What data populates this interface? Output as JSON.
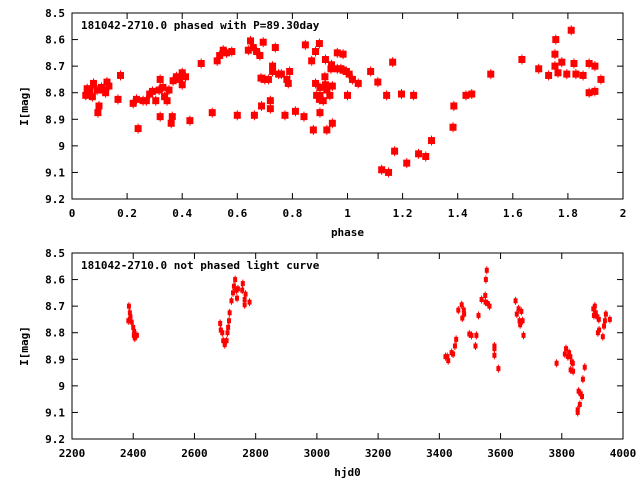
{
  "chart_data": [
    {
      "type": "scatter",
      "title": "181042-2710.0 phased with P=89.30day",
      "xlabel": "phase",
      "ylabel": "I[mag]",
      "xlim": [
        0,
        2
      ],
      "ylim": [
        8.5,
        9.2
      ],
      "y_inverted": true,
      "xticks": [
        "0",
        "0.2",
        "0.4",
        "0.6",
        "0.8",
        "1",
        "1.2",
        "1.4",
        "1.6",
        "1.8",
        "2"
      ],
      "yticks": [
        "8.5",
        "8.6",
        "8.7",
        "8.8",
        "8.9",
        "9",
        "9.1",
        "9.2"
      ],
      "grid": false,
      "marker_color": "#ff0000",
      "points": [
        [
          0.05,
          8.81
        ],
        [
          0.055,
          8.785
        ],
        [
          0.064,
          8.79
        ],
        [
          0.074,
          8.815
        ],
        [
          0.078,
          8.765
        ],
        [
          0.091,
          8.79
        ],
        [
          0.094,
          8.875
        ],
        [
          0.098,
          8.85
        ],
        [
          0.107,
          8.78
        ],
        [
          0.113,
          8.79
        ],
        [
          0.122,
          8.8
        ],
        [
          0.127,
          8.76
        ],
        [
          0.134,
          8.775
        ],
        [
          0.167,
          8.825
        ],
        [
          0.176,
          8.735
        ],
        [
          0.222,
          8.84
        ],
        [
          0.234,
          8.825
        ],
        [
          0.24,
          8.935
        ],
        [
          0.258,
          8.83
        ],
        [
          0.27,
          8.83
        ],
        [
          0.282,
          8.805
        ],
        [
          0.292,
          8.795
        ],
        [
          0.304,
          8.83
        ],
        [
          0.316,
          8.79
        ],
        [
          0.32,
          8.75
        ],
        [
          0.32,
          8.89
        ],
        [
          0.33,
          8.78
        ],
        [
          0.336,
          8.815
        ],
        [
          0.345,
          8.83
        ],
        [
          0.352,
          8.79
        ],
        [
          0.36,
          8.915
        ],
        [
          0.364,
          8.89
        ],
        [
          0.367,
          8.755
        ],
        [
          0.379,
          8.74
        ],
        [
          0.39,
          8.75
        ],
        [
          0.4,
          8.725
        ],
        [
          0.4,
          8.77
        ],
        [
          0.412,
          8.74
        ],
        [
          0.428,
          8.905
        ],
        [
          0.469,
          8.69
        ],
        [
          0.509,
          8.875
        ],
        [
          0.527,
          8.68
        ],
        [
          0.536,
          8.66
        ],
        [
          0.549,
          8.64
        ],
        [
          0.561,
          8.65
        ],
        [
          0.58,
          8.645
        ],
        [
          0.6,
          8.885
        ],
        [
          0.64,
          8.64
        ],
        [
          0.648,
          8.605
        ],
        [
          0.658,
          8.63
        ],
        [
          0.662,
          8.885
        ],
        [
          0.67,
          8.645
        ],
        [
          0.682,
          8.66
        ],
        [
          0.686,
          8.745
        ],
        [
          0.688,
          8.85
        ],
        [
          0.694,
          8.61
        ],
        [
          0.7,
          8.75
        ],
        [
          0.713,
          8.75
        ],
        [
          0.72,
          8.83
        ],
        [
          0.72,
          8.86
        ],
        [
          0.728,
          8.7
        ],
        [
          0.728,
          8.72
        ],
        [
          0.738,
          8.63
        ],
        [
          0.75,
          8.73
        ],
        [
          0.76,
          8.73
        ],
        [
          0.773,
          8.885
        ],
        [
          0.78,
          8.75
        ],
        [
          0.785,
          8.765
        ],
        [
          0.79,
          8.72
        ],
        [
          0.811,
          8.87
        ],
        [
          0.842,
          8.89
        ],
        [
          0.847,
          8.62
        ],
        [
          0.87,
          8.68
        ],
        [
          0.876,
          8.94
        ],
        [
          0.884,
          8.645
        ],
        [
          0.884,
          8.765
        ],
        [
          0.888,
          8.81
        ],
        [
          0.898,
          8.825
        ],
        [
          0.898,
          8.615
        ],
        [
          0.9,
          8.78
        ],
        [
          0.9,
          8.81
        ],
        [
          0.9,
          8.875
        ],
        [
          0.912,
          8.83
        ],
        [
          0.918,
          8.74
        ],
        [
          0.92,
          8.675
        ],
        [
          0.92,
          8.77
        ],
        [
          0.925,
          8.94
        ],
        [
          0.925,
          8.79
        ],
        [
          0.936,
          8.81
        ],
        [
          0.94,
          8.71
        ],
        [
          0.942,
          8.695
        ],
        [
          0.945,
          8.775
        ],
        [
          0.945,
          8.915
        ],
        [
          0.963,
          8.65
        ],
        [
          0.963,
          8.71
        ],
        [
          0.976,
          8.71
        ],
        [
          0.984,
          8.655
        ],
        [
          0.984,
          8.715
        ],
        [
          1.0,
          8.81
        ],
        [
          0.996,
          8.72
        ],
        [
          1.006,
          8.73
        ],
        [
          1.018,
          8.75
        ],
        [
          1.039,
          8.765
        ],
        [
          1.084,
          8.72
        ],
        [
          1.11,
          8.76
        ],
        [
          1.124,
          9.09
        ],
        [
          1.142,
          8.81
        ],
        [
          1.149,
          9.1
        ],
        [
          1.164,
          8.685
        ],
        [
          1.171,
          9.02
        ],
        [
          1.196,
          8.805
        ],
        [
          1.215,
          9.065
        ],
        [
          1.24,
          8.81
        ],
        [
          1.258,
          9.03
        ],
        [
          1.284,
          9.04
        ],
        [
          1.305,
          8.98
        ],
        [
          1.383,
          8.93
        ],
        [
          1.386,
          8.85
        ],
        [
          1.43,
          8.81
        ],
        [
          1.451,
          8.805
        ],
        [
          1.52,
          8.73
        ],
        [
          1.633,
          8.675
        ],
        [
          1.694,
          8.71
        ],
        [
          1.73,
          8.735
        ],
        [
          1.753,
          8.7
        ],
        [
          1.753,
          8.655
        ],
        [
          1.756,
          8.6
        ],
        [
          1.764,
          8.725
        ],
        [
          1.778,
          8.685
        ],
        [
          1.796,
          8.73
        ],
        [
          1.812,
          8.565
        ],
        [
          1.822,
          8.69
        ],
        [
          1.829,
          8.73
        ],
        [
          1.855,
          8.735
        ],
        [
          1.877,
          8.69
        ],
        [
          1.877,
          8.8
        ],
        [
          1.898,
          8.7
        ],
        [
          1.898,
          8.795
        ],
        [
          1.92,
          8.75
        ]
      ]
    },
    {
      "type": "scatter",
      "title": "181042-2710.0 not phased light curve",
      "xlabel": "hjd0",
      "ylabel": "I[mag]",
      "xlim": [
        2200,
        4000
      ],
      "ylim": [
        8.5,
        9.2
      ],
      "y_inverted": true,
      "xticks": [
        "2200",
        "2400",
        "2600",
        "2800",
        "3000",
        "3200",
        "3400",
        "3600",
        "3800",
        "4000"
      ],
      "yticks": [
        "8.5",
        "8.6",
        "8.7",
        "8.8",
        "8.9",
        "9",
        "9.1",
        "9.2"
      ],
      "grid": false,
      "marker_color": "#ff0000",
      "points": [
        [
          2386,
          8.7
        ],
        [
          2384,
          8.755
        ],
        [
          2389,
          8.725
        ],
        [
          2391,
          8.74
        ],
        [
          2395,
          8.76
        ],
        [
          2400,
          8.78
        ],
        [
          2402,
          8.81
        ],
        [
          2405,
          8.82
        ],
        [
          2412,
          8.81
        ],
        [
          2403,
          8.795
        ],
        [
          2684,
          8.765
        ],
        [
          2686,
          8.79
        ],
        [
          2691,
          8.8
        ],
        [
          2694,
          8.83
        ],
        [
          2699,
          8.845
        ],
        [
          2705,
          8.83
        ],
        [
          2708,
          8.8
        ],
        [
          2710,
          8.78
        ],
        [
          2713,
          8.755
        ],
        [
          2715,
          8.725
        ],
        [
          2721,
          8.68
        ],
        [
          2726,
          8.65
        ],
        [
          2729,
          8.625
        ],
        [
          2733,
          8.6
        ],
        [
          2737,
          8.64
        ],
        [
          2739,
          8.67
        ],
        [
          2742,
          8.635
        ],
        [
          2756,
          8.64
        ],
        [
          2758,
          8.615
        ],
        [
          2764,
          8.675
        ],
        [
          2764,
          8.695
        ],
        [
          2767,
          8.655
        ],
        [
          2780,
          8.685
        ],
        [
          3420,
          8.89
        ],
        [
          3426,
          8.89
        ],
        [
          3429,
          8.905
        ],
        [
          3440,
          8.875
        ],
        [
          3445,
          8.88
        ],
        [
          3451,
          8.85
        ],
        [
          3455,
          8.825
        ],
        [
          3462,
          8.715
        ],
        [
          3473,
          8.695
        ],
        [
          3475,
          8.745
        ],
        [
          3480,
          8.715
        ],
        [
          3481,
          8.73
        ],
        [
          3498,
          8.805
        ],
        [
          3505,
          8.81
        ],
        [
          3518,
          8.85
        ],
        [
          3521,
          8.81
        ],
        [
          3528,
          8.735
        ],
        [
          3538,
          8.675
        ],
        [
          3550,
          8.66
        ],
        [
          3552,
          8.6
        ],
        [
          3555,
          8.565
        ],
        [
          3551,
          8.685
        ],
        [
          3558,
          8.69
        ],
        [
          3564,
          8.7
        ],
        [
          3580,
          8.85
        ],
        [
          3580,
          8.885
        ],
        [
          3580,
          8.86
        ],
        [
          3593,
          8.935
        ],
        [
          3649,
          8.68
        ],
        [
          3653,
          8.73
        ],
        [
          3659,
          8.71
        ],
        [
          3662,
          8.755
        ],
        [
          3664,
          8.77
        ],
        [
          3668,
          8.72
        ],
        [
          3672,
          8.755
        ],
        [
          3675,
          8.81
        ],
        [
          3783,
          8.915
        ],
        [
          3810,
          8.88
        ],
        [
          3814,
          8.86
        ],
        [
          3820,
          8.89
        ],
        [
          3824,
          8.875
        ],
        [
          3828,
          8.89
        ],
        [
          3833,
          8.91
        ],
        [
          3829,
          8.94
        ],
        [
          3836,
          8.915
        ],
        [
          3837,
          8.945
        ],
        [
          3855,
          9.02
        ],
        [
          3862,
          9.03
        ],
        [
          3866,
          9.04
        ],
        [
          3869,
          8.975
        ],
        [
          3875,
          8.93
        ],
        [
          3852,
          9.09
        ],
        [
          3852,
          9.1
        ],
        [
          3859,
          9.07
        ],
        [
          3903,
          8.71
        ],
        [
          3908,
          8.7
        ],
        [
          3905,
          8.735
        ],
        [
          3911,
          8.725
        ],
        [
          3916,
          8.74
        ],
        [
          3921,
          8.75
        ],
        [
          3918,
          8.8
        ],
        [
          3922,
          8.79
        ],
        [
          3934,
          8.815
        ],
        [
          3938,
          8.775
        ],
        [
          3941,
          8.755
        ],
        [
          3944,
          8.73
        ],
        [
          3957,
          8.75
        ]
      ]
    }
  ]
}
